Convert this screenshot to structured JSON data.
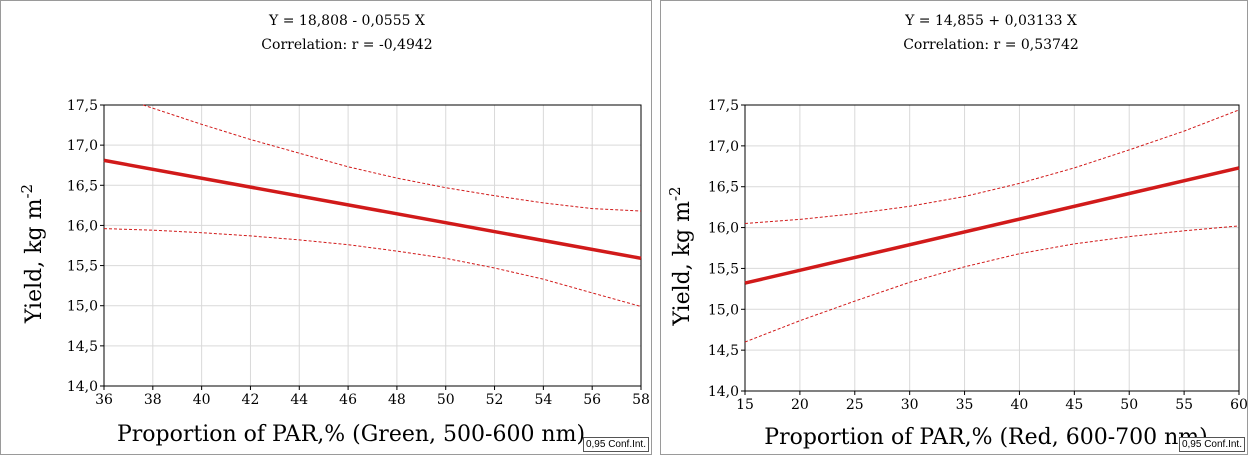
{
  "chart_data": [
    {
      "type": "line",
      "equation": "Y = 18,808 - 0,0555 X",
      "correlation": "Correlation: r = -0,4942",
      "xlabel": "Proportion of PAR,% (Green, 500-600 nm)",
      "ylabel": "Yield, kg m",
      "ylabel_sup": "-2",
      "xlim": [
        36,
        58
      ],
      "ylim": [
        14.0,
        17.5
      ],
      "xticks": [
        "36",
        "38",
        "40",
        "42",
        "44",
        "46",
        "48",
        "50",
        "52",
        "54",
        "56",
        "58"
      ],
      "yticks": [
        "14,0",
        "14,5",
        "15,0",
        "15,5",
        "16,0",
        "16,5",
        "17,0",
        "17,5"
      ],
      "grid": true,
      "badge": "0,95 Conf.Int.",
      "series": [
        {
          "role": "fit",
          "x": [
            36,
            58
          ],
          "y": [
            16.81,
            15.59
          ]
        },
        {
          "role": "upper-ci",
          "x": [
            37.6,
            40,
            42,
            44,
            46,
            48,
            50,
            52,
            54,
            56,
            58
          ],
          "y": [
            17.5,
            17.26,
            17.07,
            16.9,
            16.73,
            16.59,
            16.47,
            16.37,
            16.28,
            16.21,
            16.18
          ]
        },
        {
          "role": "lower-ci",
          "x": [
            36,
            38,
            40,
            42,
            44,
            46,
            48,
            50,
            52,
            54,
            56,
            58
          ],
          "y": [
            15.96,
            15.94,
            15.91,
            15.87,
            15.82,
            15.76,
            15.68,
            15.59,
            15.47,
            15.33,
            15.16,
            14.99
          ]
        }
      ]
    },
    {
      "type": "line",
      "equation": "Y = 14,855 + 0,03133 X",
      "correlation": "Correlation: r = 0,53742",
      "xlabel": "Proportion of PAR,% (Red, 600-700 nm)",
      "ylabel": "Yield, kg m",
      "ylabel_sup": "-2",
      "xlim": [
        15,
        60
      ],
      "ylim": [
        14.0,
        17.5
      ],
      "xticks": [
        "15",
        "20",
        "25",
        "30",
        "35",
        "40",
        "45",
        "50",
        "55",
        "60"
      ],
      "yticks": [
        "14,0",
        "14,5",
        "15,0",
        "15,5",
        "16,0",
        "16,5",
        "17,0",
        "17,5"
      ],
      "grid": true,
      "badge": "0,95 Conf.Int.",
      "series": [
        {
          "role": "fit",
          "x": [
            15,
            60
          ],
          "y": [
            15.32,
            16.73
          ]
        },
        {
          "role": "upper-ci",
          "x": [
            15,
            20,
            25,
            30,
            35,
            40,
            45,
            50,
            55,
            60
          ],
          "y": [
            16.05,
            16.1,
            16.17,
            16.26,
            16.38,
            16.54,
            16.73,
            16.95,
            17.18,
            17.44
          ]
        },
        {
          "role": "lower-ci",
          "x": [
            15,
            20,
            25,
            30,
            35,
            40,
            45,
            50,
            55,
            60
          ],
          "y": [
            14.6,
            14.86,
            15.1,
            15.33,
            15.52,
            15.68,
            15.8,
            15.89,
            15.96,
            16.02
          ]
        }
      ]
    }
  ]
}
